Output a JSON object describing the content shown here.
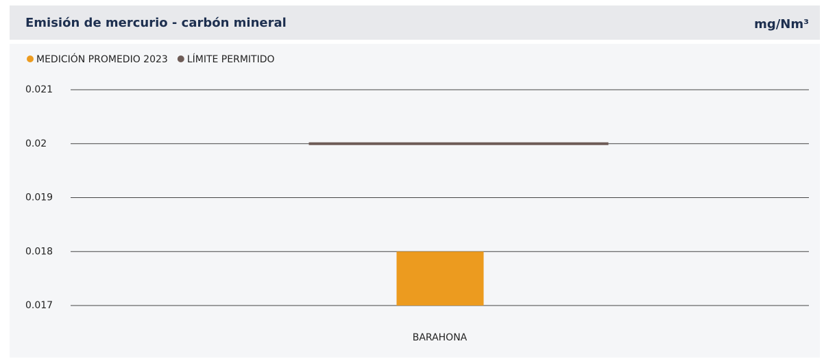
{
  "chart_data": {
    "type": "bar",
    "title": "Emisión de mercurio - carbón mineral",
    "unit": "mg/Nm³",
    "categories": [
      "BARAHONA"
    ],
    "series": [
      {
        "name": "MEDICIÓN PROMEDIO 2023",
        "color": "#ec9b1f",
        "values": [
          0.018
        ]
      },
      {
        "name": "LÍMITE PERMITIDO",
        "color": "#6e5c57",
        "values": [
          0.02
        ]
      }
    ],
    "ylim": [
      0.017,
      0.021
    ],
    "yticks": [
      0.017,
      0.018,
      0.019,
      0.02,
      0.021
    ],
    "grid": true
  }
}
